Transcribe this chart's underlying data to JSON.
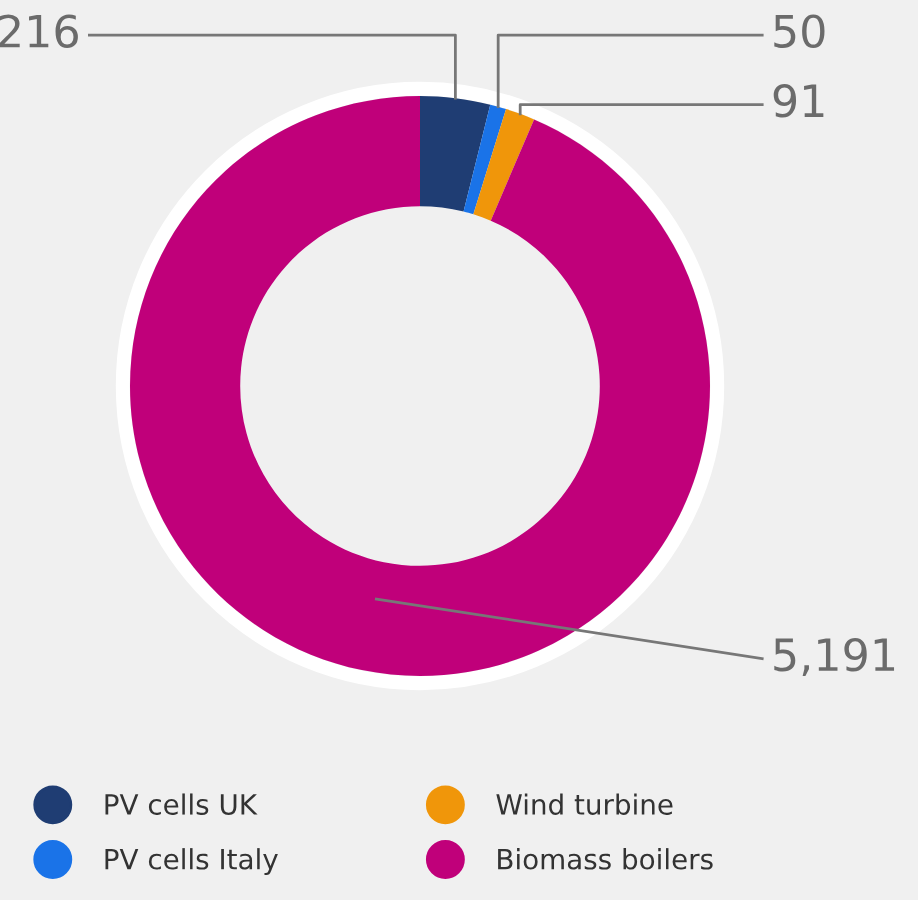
{
  "chart_data": {
    "type": "donut",
    "categories": [
      "PV cells UK",
      "PV cells Italy",
      "Wind turbine",
      "Biomass boilers"
    ],
    "values": [
      216,
      50,
      91,
      5191
    ],
    "colors": [
      "#1f3d73",
      "#1a73e8",
      "#f0960a",
      "#c0007a"
    ],
    "value_labels": [
      "216",
      "50",
      "91",
      "5,191"
    ],
    "legend": "bottom"
  }
}
